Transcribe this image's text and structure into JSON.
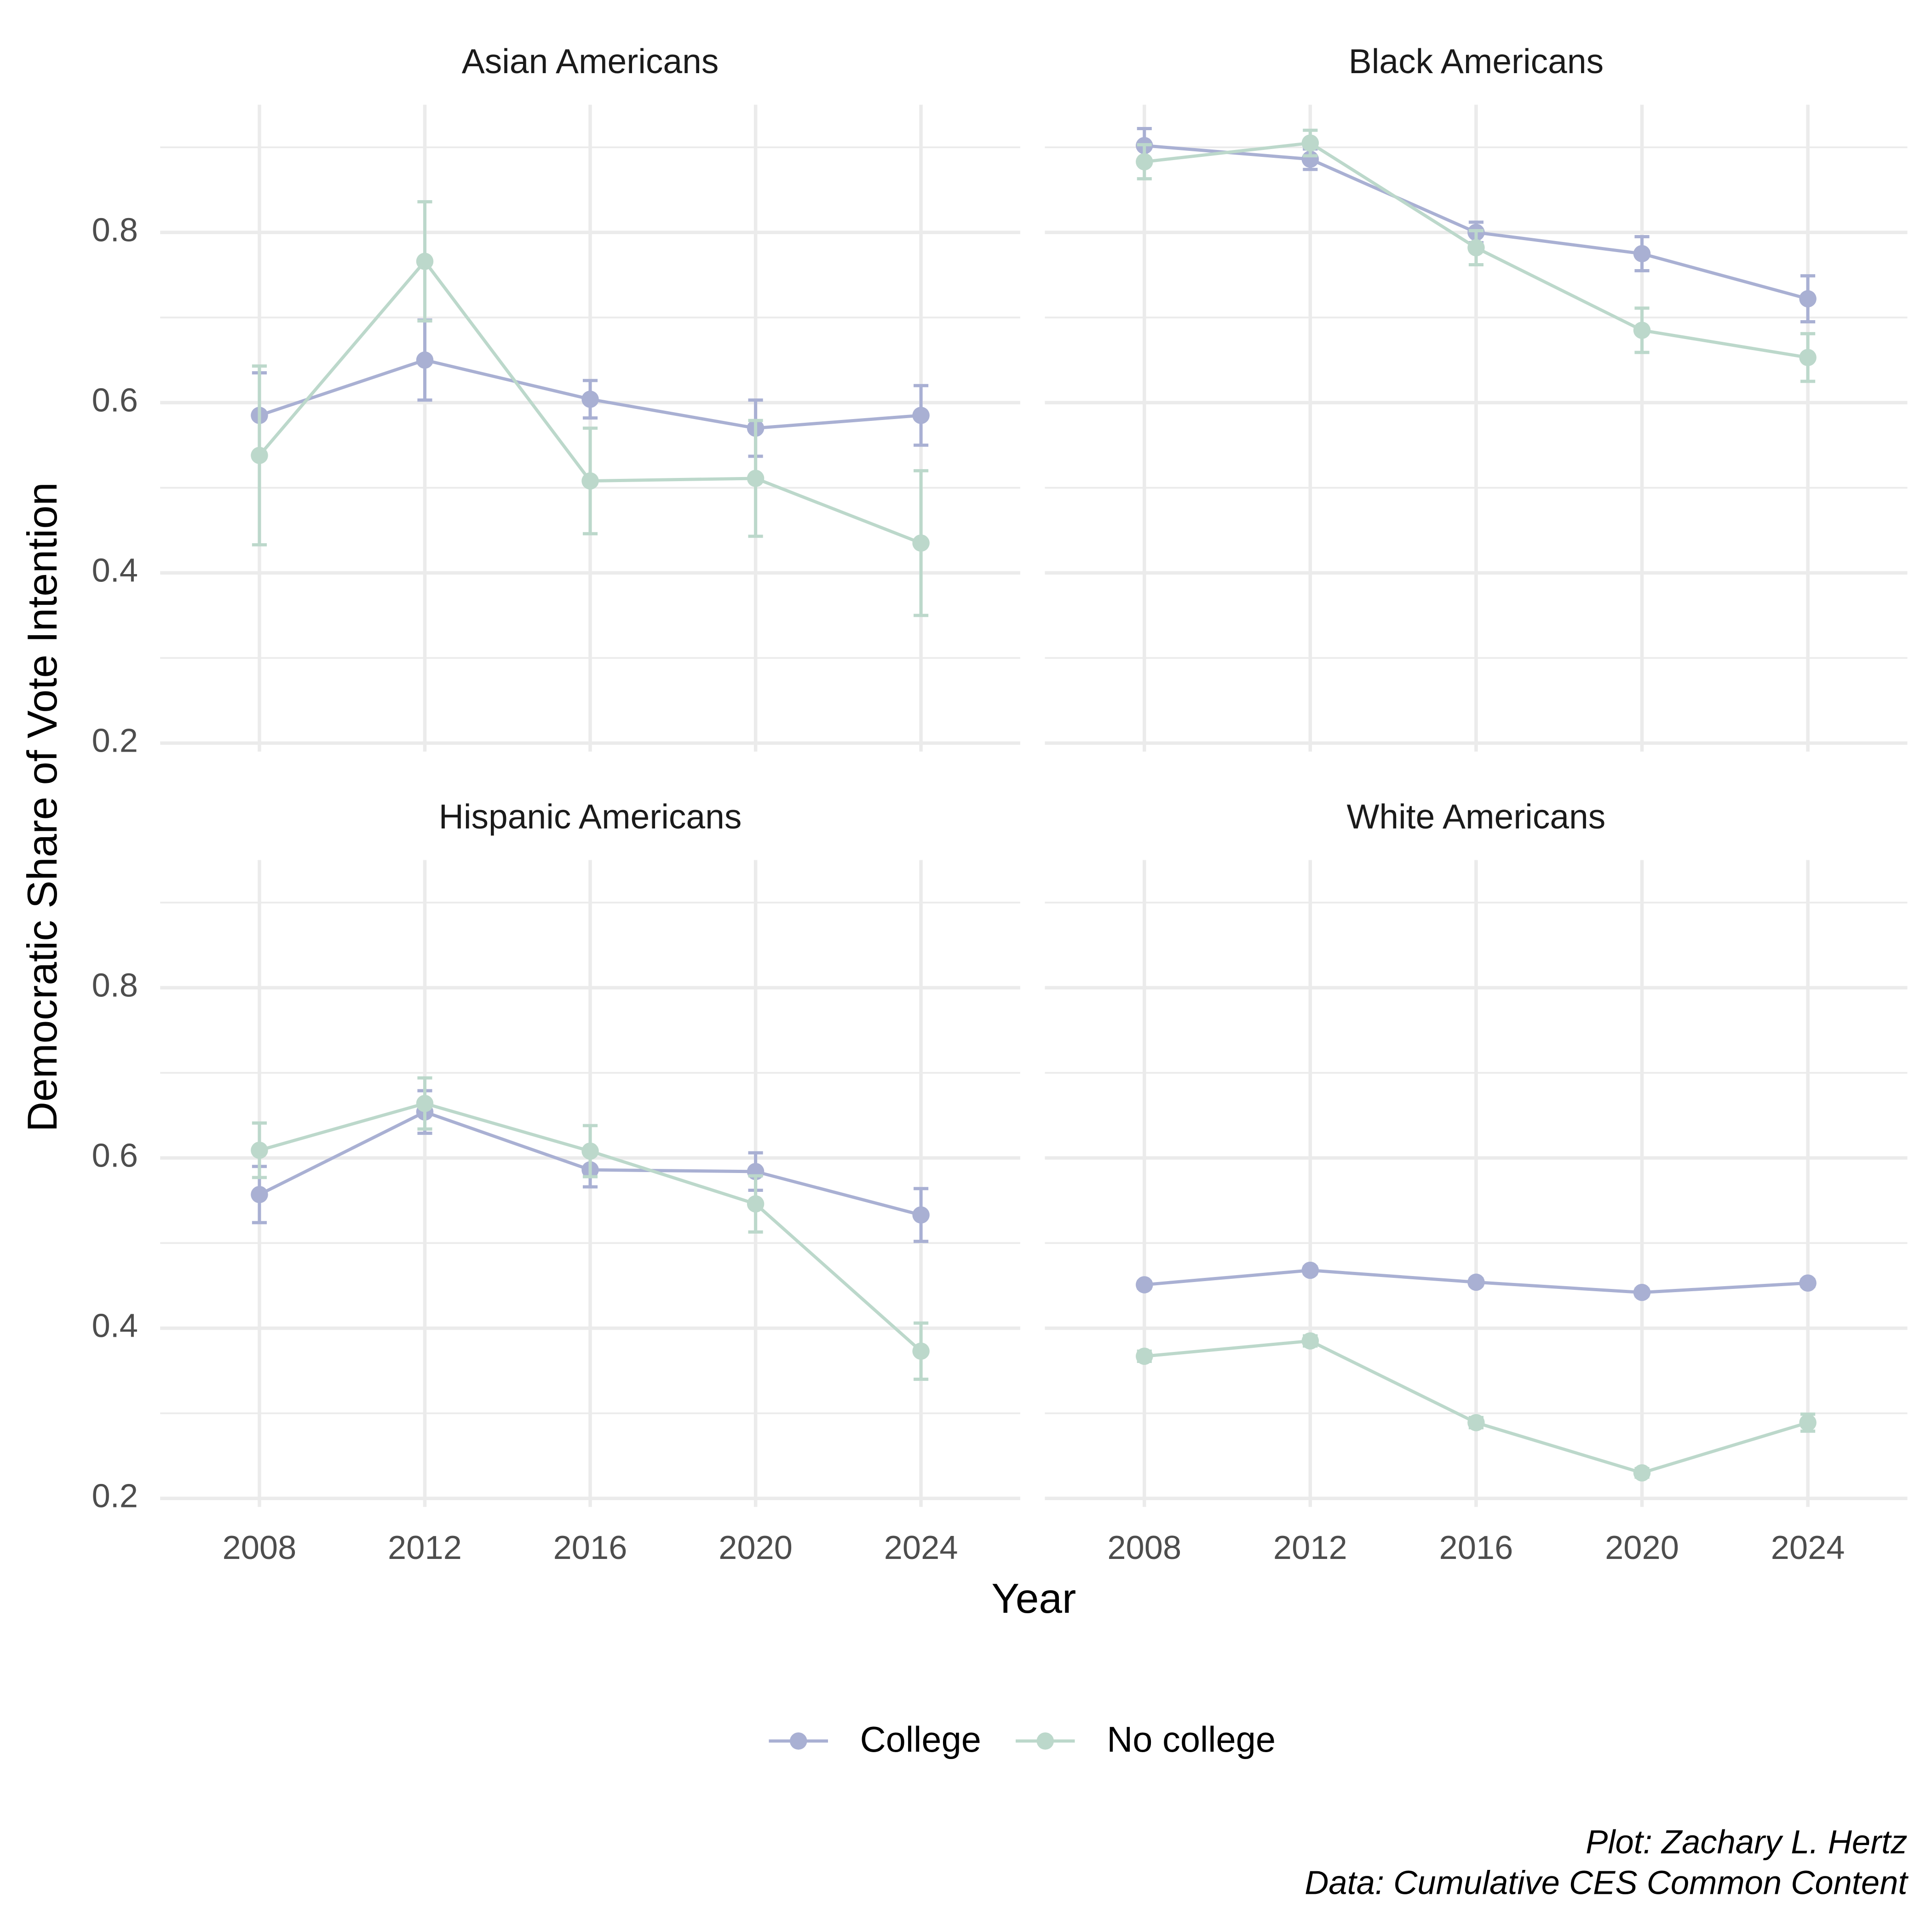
{
  "chart_data": {
    "type": "line",
    "x_label": "Year",
    "y_label": "Democratic Share of Vote Intention",
    "caption": [
      "Plot: Zachary L. Hertz",
      "Data: Cumulative CES Common Content"
    ],
    "legend": "bottom",
    "grid": true,
    "x": [
      2008,
      2012,
      2016,
      2020,
      2024
    ],
    "xlim": [
      2005.6,
      2026.4
    ],
    "xticks": [
      2008,
      2012,
      2016,
      2020,
      2024
    ],
    "ylim": [
      0.19,
      0.95
    ],
    "yticks": [
      0.2,
      0.4,
      0.6,
      0.8
    ],
    "yminor": [
      0.3,
      0.5,
      0.7,
      0.9
    ],
    "facets": [
      {
        "title": "Asian Americans",
        "series": [
          {
            "name": "College",
            "color": "#a9b0d3",
            "values": [
              0.585,
              0.65,
              0.604,
              0.57,
              0.585
            ],
            "errors": [
              0.05,
              0.047,
              0.022,
              0.033,
              0.035
            ]
          },
          {
            "name": "No college",
            "color": "#bcd8cb",
            "values": [
              0.538,
              0.766,
              0.508,
              0.511,
              0.435
            ],
            "errors": [
              0.105,
              0.07,
              0.062,
              0.068,
              0.085
            ]
          }
        ]
      },
      {
        "title": "Black Americans",
        "series": [
          {
            "name": "College",
            "color": "#a9b0d3",
            "values": [
              0.902,
              0.886,
              0.8,
              0.775,
              0.722
            ],
            "errors": [
              0.02,
              0.012,
              0.012,
              0.02,
              0.027
            ]
          },
          {
            "name": "No college",
            "color": "#bcd8cb",
            "values": [
              0.883,
              0.905,
              0.782,
              0.685,
              0.653
            ],
            "errors": [
              0.02,
              0.015,
              0.02,
              0.026,
              0.028
            ]
          }
        ]
      },
      {
        "title": "Hispanic Americans",
        "series": [
          {
            "name": "College",
            "color": "#a9b0d3",
            "values": [
              0.557,
              0.654,
              0.586,
              0.584,
              0.533
            ],
            "errors": [
              0.033,
              0.025,
              0.02,
              0.022,
              0.031
            ]
          },
          {
            "name": "No college",
            "color": "#bcd8cb",
            "values": [
              0.609,
              0.664,
              0.608,
              0.546,
              0.373
            ],
            "errors": [
              0.032,
              0.03,
              0.03,
              0.033,
              0.033
            ]
          }
        ]
      },
      {
        "title": "White Americans",
        "series": [
          {
            "name": "College",
            "color": "#a9b0d3",
            "values": [
              0.451,
              0.468,
              0.454,
              0.442,
              0.453
            ],
            "errors": [
              0.004,
              0.004,
              0.004,
              0.004,
              0.004
            ]
          },
          {
            "name": "No college",
            "color": "#bcd8cb",
            "values": [
              0.367,
              0.385,
              0.289,
              0.23,
              0.289
            ],
            "errors": [
              0.006,
              0.006,
              0.006,
              0.005,
              0.01
            ]
          }
        ]
      }
    ]
  }
}
